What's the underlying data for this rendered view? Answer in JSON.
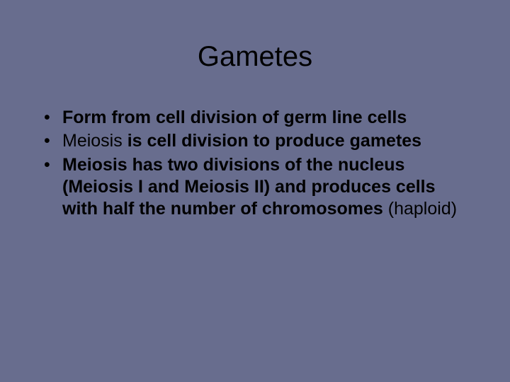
{
  "background_color": "#686d8e",
  "text_color": "#000000",
  "title": {
    "text": "Gametes",
    "fontsize": 40,
    "weight": "normal",
    "align": "center"
  },
  "bullets": {
    "fontsize": 25,
    "marker": "•",
    "items": [
      {
        "runs": [
          {
            "text": "Form from cell division of ",
            "bold": true
          },
          {
            "text": "germ line cells",
            "bold": true
          }
        ]
      },
      {
        "runs": [
          {
            "text": "Meiosis ",
            "bold": false
          },
          {
            "text": "is cell division to produce gametes",
            "bold": true
          }
        ]
      },
      {
        "runs": [
          {
            "text": "Meiosis has two divisions of the nucleus (Meiosis I and Meiosis II) and produces cells with half the number of chromosomes ",
            "bold": true
          },
          {
            "text": "(haploid)",
            "bold": false
          }
        ]
      }
    ]
  }
}
